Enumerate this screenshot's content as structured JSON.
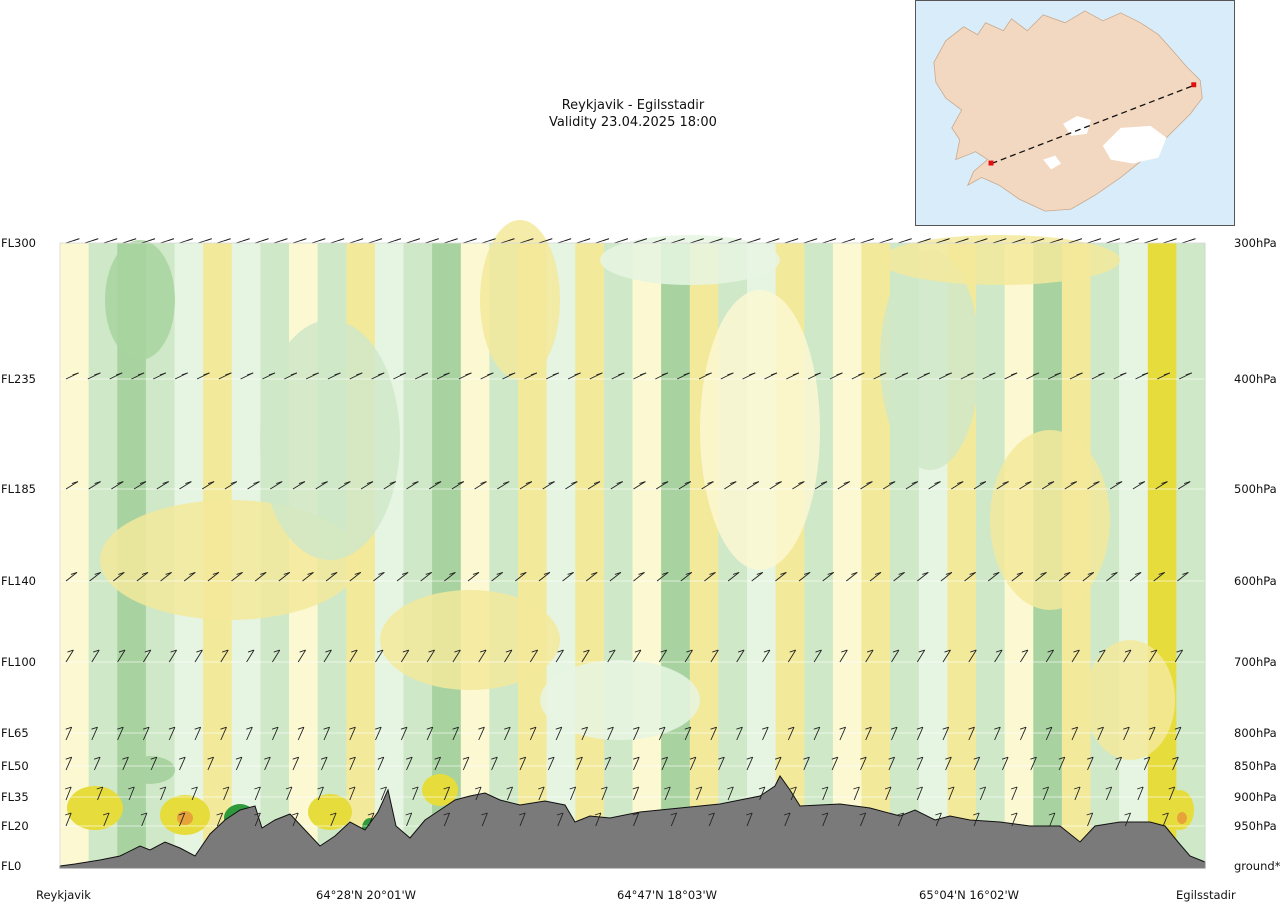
{
  "chart_data": {
    "type": "heatmap",
    "title": "Reykjavik - Egilsstadir",
    "subtitle": "Validity 23.04.2025 18:00",
    "levels": [
      {
        "fl": "FL300",
        "hpa": "300hPa"
      },
      {
        "fl": "FL235",
        "hpa": "400hPa"
      },
      {
        "fl": "FL185",
        "hpa": "500hPa"
      },
      {
        "fl": "FL140",
        "hpa": "600hPa"
      },
      {
        "fl": "FL100",
        "hpa": "700hPa"
      },
      {
        "fl": "FL65",
        "hpa": "800hPa"
      },
      {
        "fl": "FL50",
        "hpa": "850hPa"
      },
      {
        "fl": "FL35",
        "hpa": "900hPa"
      },
      {
        "fl": "FL20",
        "hpa": "950hPa"
      },
      {
        "fl": "FL0",
        "hpa": "ground*"
      }
    ],
    "x_labels": [
      "Reykjavik",
      "64°28'N 20°01'W",
      "64°47'N 18°03'W",
      "65°04'N 16°02'W",
      "Egilsstadir"
    ],
    "route": {
      "from": "Reykjavik",
      "to": "Egilsstadir"
    },
    "colors": {
      "yellow": "#f3e99b",
      "pale_yellow": "#fbf8d2",
      "pale_green": "#e6f5e2",
      "green": "#cfe8c8",
      "mid_green": "#a8d3a0",
      "dark_green": "#2e9a3c",
      "strong_yellow": "#e6dc3c",
      "orange": "#e8a23a",
      "terrain": "#7a7a7a"
    }
  }
}
